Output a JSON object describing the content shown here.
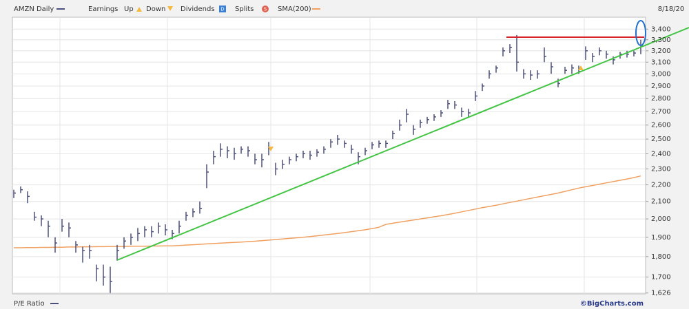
{
  "chart_data": {
    "type": "ohlc",
    "date": "8/18/20",
    "earnings_label": "Earnings",
    "earnings_up": "Up",
    "earnings_down": "Down",
    "dividends": "Dividends",
    "dividends_icon": "D",
    "splits": "Splits",
    "splits_icon": "S",
    "lower_panel": "P/E Ratio",
    "credit": "©BigCharts.com",
    "log_scale": true,
    "grid": true,
    "ylim": [
      1622,
      3515
    ],
    "yticks": [
      {
        "value": 3400,
        "label": "3,400"
      },
      {
        "value": 3300,
        "label": "3,300"
      },
      {
        "value": 3200,
        "label": "3,200"
      },
      {
        "value": 3100,
        "label": "3,100"
      },
      {
        "value": 3000,
        "label": "3,000"
      },
      {
        "value": 2900,
        "label": "2,900"
      },
      {
        "value": 2800,
        "label": "2,800"
      },
      {
        "value": 2700,
        "label": "2,700"
      },
      {
        "value": 2600,
        "label": "2,600"
      },
      {
        "value": 2500,
        "label": "2,500"
      },
      {
        "value": 2400,
        "label": "2,400"
      },
      {
        "value": 2300,
        "label": "2,300"
      },
      {
        "value": 2200,
        "label": "2,200"
      },
      {
        "value": 2100,
        "label": "2,100"
      },
      {
        "value": 2000,
        "label": "2,000"
      },
      {
        "value": 1900,
        "label": "1,900"
      },
      {
        "value": 1800,
        "label": "1,800"
      },
      {
        "value": 1700,
        "label": "1,700"
      },
      {
        "value": 1626,
        "label": "1,626"
      }
    ],
    "series": [
      {
        "name": "AMZN Daily",
        "color": "#4b4f7c",
        "high": [
          2170,
          2190,
          2160,
          2040,
          2020,
          1990,
          1900,
          2000,
          1980,
          1880,
          1850,
          1860,
          1760,
          1760,
          1750,
          1860,
          1900,
          1920,
          1950,
          1960,
          1960,
          1980,
          1970,
          1940,
          1990,
          2040,
          2060,
          2100,
          2330,
          2420,
          2470,
          2450,
          2440,
          2450,
          2450,
          2400,
          2400,
          2480,
          2340,
          2360,
          2380,
          2400,
          2420,
          2420,
          2430,
          2450,
          2500,
          2530,
          2490,
          2460,
          2410,
          2440,
          2480,
          2490,
          2490,
          2560,
          2640,
          2720,
          2600,
          2640,
          2660,
          2680,
          2710,
          2790,
          2780,
          2730,
          2720,
          2860,
          2920,
          3030,
          3070,
          3230,
          3260,
          3344,
          3040,
          3030,
          3030,
          3230,
          3100,
          2960,
          3060,
          3080,
          3070,
          3240,
          3180,
          3230,
          3200,
          3150,
          3190,
          3200,
          3200,
          3300
        ],
        "low": [
          2120,
          2150,
          2090,
          1990,
          1960,
          1900,
          1820,
          1930,
          1900,
          1820,
          1770,
          1790,
          1680,
          1660,
          1626,
          1780,
          1840,
          1860,
          1880,
          1900,
          1900,
          1920,
          1910,
          1890,
          1920,
          1990,
          2010,
          2030,
          2180,
          2330,
          2380,
          2370,
          2360,
          2400,
          2380,
          2330,
          2310,
          2390,
          2260,
          2300,
          2330,
          2350,
          2370,
          2360,
          2380,
          2400,
          2440,
          2460,
          2440,
          2400,
          2330,
          2390,
          2430,
          2440,
          2440,
          2500,
          2560,
          2620,
          2530,
          2580,
          2610,
          2630,
          2660,
          2720,
          2720,
          2660,
          2660,
          2780,
          2860,
          2960,
          3010,
          3150,
          3180,
          3020,
          2960,
          2950,
          2960,
          3100,
          3000,
          2890,
          3000,
          3000,
          3000,
          3120,
          3100,
          3160,
          3130,
          3080,
          3130,
          3140,
          3150,
          3170
        ],
        "close": [
          2150,
          2170,
          2130,
          2010,
          2000,
          1960,
          1870,
          1960,
          1950,
          1860,
          1830,
          1830,
          1740,
          1700,
          1680,
          1830,
          1880,
          1900,
          1920,
          1940,
          1930,
          1960,
          1940,
          1920,
          1960,
          2020,
          2040,
          2060,
          2280,
          2380,
          2430,
          2420,
          2400,
          2430,
          2420,
          2360,
          2360,
          2440,
          2300,
          2330,
          2360,
          2380,
          2400,
          2390,
          2410,
          2430,
          2480,
          2500,
          2470,
          2430,
          2380,
          2420,
          2460,
          2470,
          2470,
          2540,
          2600,
          2680,
          2570,
          2620,
          2640,
          2660,
          2690,
          2760,
          2750,
          2700,
          2690,
          2820,
          2900,
          3000,
          3050,
          3200,
          3230,
          3100,
          3000,
          2990,
          3000,
          3150,
          3060,
          2920,
          3030,
          3050,
          3020,
          3200,
          3150,
          3200,
          3170,
          3120,
          3170,
          3170,
          3180,
          3250
        ]
      },
      {
        "name": "SMA(200)",
        "color": "#f0a060",
        "values": [
          1845,
          1845,
          1846,
          1846,
          1847,
          1847,
          1848,
          1848,
          1849,
          1849,
          1850,
          1850,
          1851,
          1851,
          1852,
          1852,
          1852,
          1853,
          1853,
          1853,
          1854,
          1854,
          1855,
          1855,
          1857,
          1859,
          1861,
          1863,
          1865,
          1867,
          1869,
          1871,
          1873,
          1875,
          1877,
          1879,
          1882,
          1885,
          1888,
          1891,
          1894,
          1897,
          1900,
          1904,
          1908,
          1912,
          1916,
          1920,
          1925,
          1930,
          1935,
          1940,
          1947,
          1954,
          1970,
          1976,
          1982,
          1988,
          1994,
          2000,
          2006,
          2012,
          2018,
          2025,
          2032,
          2040,
          2048,
          2056,
          2064,
          2071,
          2078,
          2086,
          2094,
          2102,
          2110,
          2118,
          2126,
          2134,
          2142,
          2150,
          2160,
          2170,
          2180,
          2188,
          2196,
          2204,
          2212,
          2220,
          2228,
          2236,
          2245,
          2255
        ]
      }
    ]
  }
}
